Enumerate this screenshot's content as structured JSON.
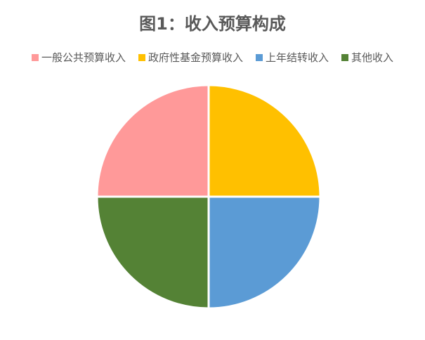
{
  "chart_data": {
    "type": "pie",
    "title": "图1：收入预算构成",
    "start_angle_deg": 270,
    "legend_position": "top",
    "slices": [
      {
        "name": "一般公共预算收入",
        "value": 25,
        "color": "#FF9999"
      },
      {
        "name": "政府性基金预算收入",
        "value": 25,
        "color": "#FFC000"
      },
      {
        "name": "上年结转收入",
        "value": 25,
        "color": "#5B9BD5"
      },
      {
        "name": "其他收入",
        "value": 25,
        "color": "#548235"
      }
    ]
  }
}
